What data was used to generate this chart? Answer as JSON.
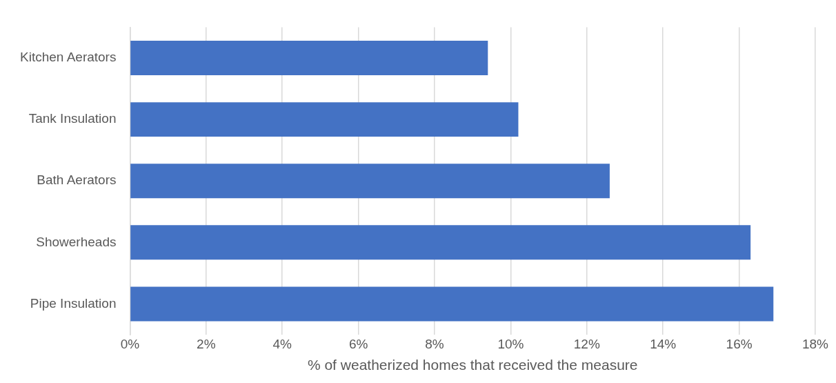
{
  "chart_data": {
    "type": "bar",
    "orientation": "horizontal",
    "xlabel": "% of weatherized homes that received the measure",
    "categories": [
      "Kitchen Aerators",
      "Tank Insulation",
      "Bath Aerators",
      "Showerheads",
      "Pipe Insulation"
    ],
    "values": [
      9.4,
      10.2,
      12.6,
      16.3,
      16.9
    ],
    "color": "#4472c4",
    "xlim": [
      0,
      18
    ],
    "xticks": [
      {
        "value": 0,
        "label": "0%"
      },
      {
        "value": 2,
        "label": "2%"
      },
      {
        "value": 4,
        "label": "4%"
      },
      {
        "value": 6,
        "label": "6%"
      },
      {
        "value": 8,
        "label": "8%"
      },
      {
        "value": 10,
        "label": "10%"
      },
      {
        "value": 12,
        "label": "12%"
      },
      {
        "value": 14,
        "label": "14%"
      },
      {
        "value": 16,
        "label": "16%"
      },
      {
        "value": 18,
        "label": "18%"
      }
    ],
    "grid": "x",
    "legend": false
  }
}
